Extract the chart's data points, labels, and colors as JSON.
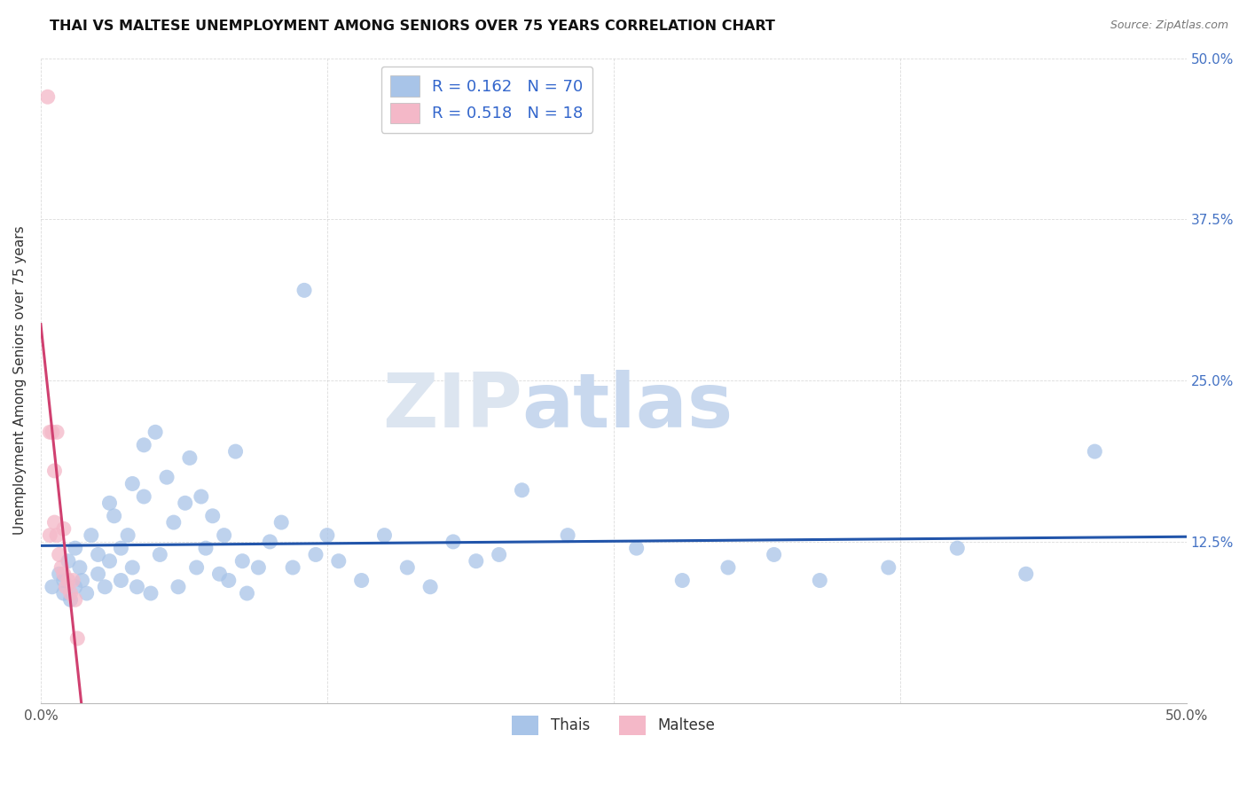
{
  "title": "THAI VS MALTESE UNEMPLOYMENT AMONG SENIORS OVER 75 YEARS CORRELATION CHART",
  "source": "Source: ZipAtlas.com",
  "ylabel": "Unemployment Among Seniors over 75 years",
  "xlim": [
    0.0,
    0.5
  ],
  "ylim": [
    0.0,
    0.5
  ],
  "xticks": [
    0.0,
    0.125,
    0.25,
    0.375,
    0.5
  ],
  "yticks": [
    0.0,
    0.125,
    0.25,
    0.375,
    0.5
  ],
  "xticklabels": [
    "0.0%",
    "",
    "",
    "",
    "50.0%"
  ],
  "yticklabels": [
    "",
    "12.5%",
    "25.0%",
    "37.5%",
    "50.0%"
  ],
  "thai_R": 0.162,
  "thai_N": 70,
  "maltese_R": 0.518,
  "maltese_N": 18,
  "thai_color": "#a8c4e8",
  "maltese_color": "#f4b8c8",
  "thai_line_color": "#2255aa",
  "maltese_line_color": "#d04070",
  "watermark_zip": "ZIP",
  "watermark_atlas": "atlas",
  "thai_scatter_x": [
    0.005,
    0.008,
    0.01,
    0.01,
    0.012,
    0.013,
    0.015,
    0.015,
    0.017,
    0.018,
    0.02,
    0.022,
    0.025,
    0.025,
    0.028,
    0.03,
    0.03,
    0.032,
    0.035,
    0.035,
    0.038,
    0.04,
    0.04,
    0.042,
    0.045,
    0.045,
    0.048,
    0.05,
    0.052,
    0.055,
    0.058,
    0.06,
    0.063,
    0.065,
    0.068,
    0.07,
    0.072,
    0.075,
    0.078,
    0.08,
    0.082,
    0.085,
    0.088,
    0.09,
    0.095,
    0.1,
    0.105,
    0.11,
    0.115,
    0.12,
    0.125,
    0.13,
    0.14,
    0.15,
    0.16,
    0.17,
    0.18,
    0.19,
    0.2,
    0.21,
    0.23,
    0.26,
    0.28,
    0.3,
    0.32,
    0.34,
    0.37,
    0.4,
    0.43,
    0.46
  ],
  "thai_scatter_y": [
    0.09,
    0.1,
    0.085,
    0.095,
    0.11,
    0.08,
    0.12,
    0.09,
    0.105,
    0.095,
    0.085,
    0.13,
    0.1,
    0.115,
    0.09,
    0.155,
    0.11,
    0.145,
    0.095,
    0.12,
    0.13,
    0.105,
    0.17,
    0.09,
    0.16,
    0.2,
    0.085,
    0.21,
    0.115,
    0.175,
    0.14,
    0.09,
    0.155,
    0.19,
    0.105,
    0.16,
    0.12,
    0.145,
    0.1,
    0.13,
    0.095,
    0.195,
    0.11,
    0.085,
    0.105,
    0.125,
    0.14,
    0.105,
    0.32,
    0.115,
    0.13,
    0.11,
    0.095,
    0.13,
    0.105,
    0.09,
    0.125,
    0.11,
    0.115,
    0.165,
    0.13,
    0.12,
    0.095,
    0.105,
    0.115,
    0.095,
    0.105,
    0.12,
    0.1,
    0.195
  ],
  "maltese_scatter_x": [
    0.003,
    0.004,
    0.004,
    0.005,
    0.006,
    0.006,
    0.007,
    0.007,
    0.008,
    0.009,
    0.01,
    0.01,
    0.011,
    0.012,
    0.013,
    0.014,
    0.015,
    0.016
  ],
  "maltese_scatter_y": [
    0.47,
    0.13,
    0.21,
    0.21,
    0.18,
    0.14,
    0.13,
    0.21,
    0.115,
    0.105,
    0.1,
    0.135,
    0.09,
    0.095,
    0.085,
    0.095,
    0.08,
    0.05
  ]
}
